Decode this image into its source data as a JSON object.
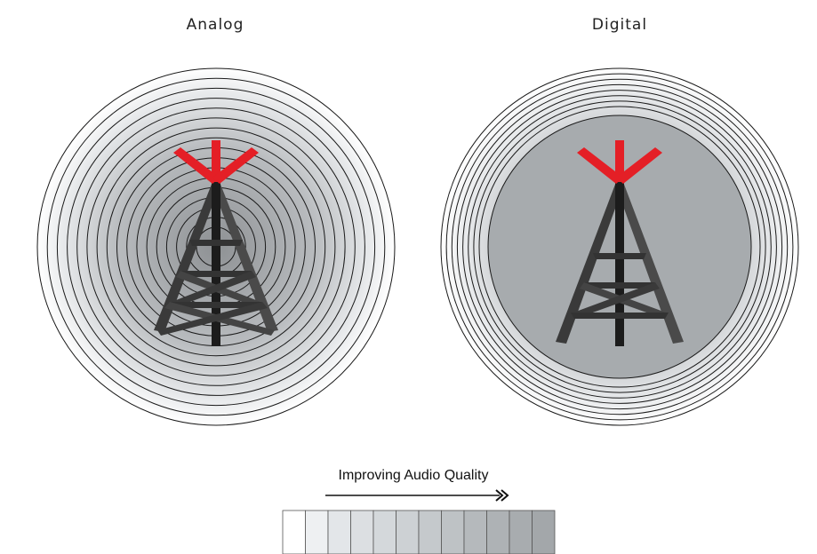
{
  "diagram": {
    "panels": [
      {
        "id": "analog",
        "title": "Analog",
        "ring_count": 17,
        "inner_fill": "#a7abae"
      },
      {
        "id": "digital",
        "title": "Digital",
        "ring_count": 8,
        "inner_fill": "#a7abae"
      }
    ],
    "quality_scale": {
      "label": "Improving Audio Quality",
      "swatches": [
        "#ffffff",
        "#eef0f2",
        "#e3e6e9",
        "#dcdfe2",
        "#d4d8db",
        "#cdd1d4",
        "#c5c9cc",
        "#bec2c5",
        "#b5b9bc",
        "#aeb2b5",
        "#a8acaf",
        "#a3a7aa"
      ]
    },
    "colors": {
      "tower_red": "#e41f26",
      "tower_dark": "#2a2a2a",
      "ring_stroke": "#1a1a1a"
    },
    "icons": [
      "radio-tower-icon",
      "arrow-right-icon"
    ]
  }
}
